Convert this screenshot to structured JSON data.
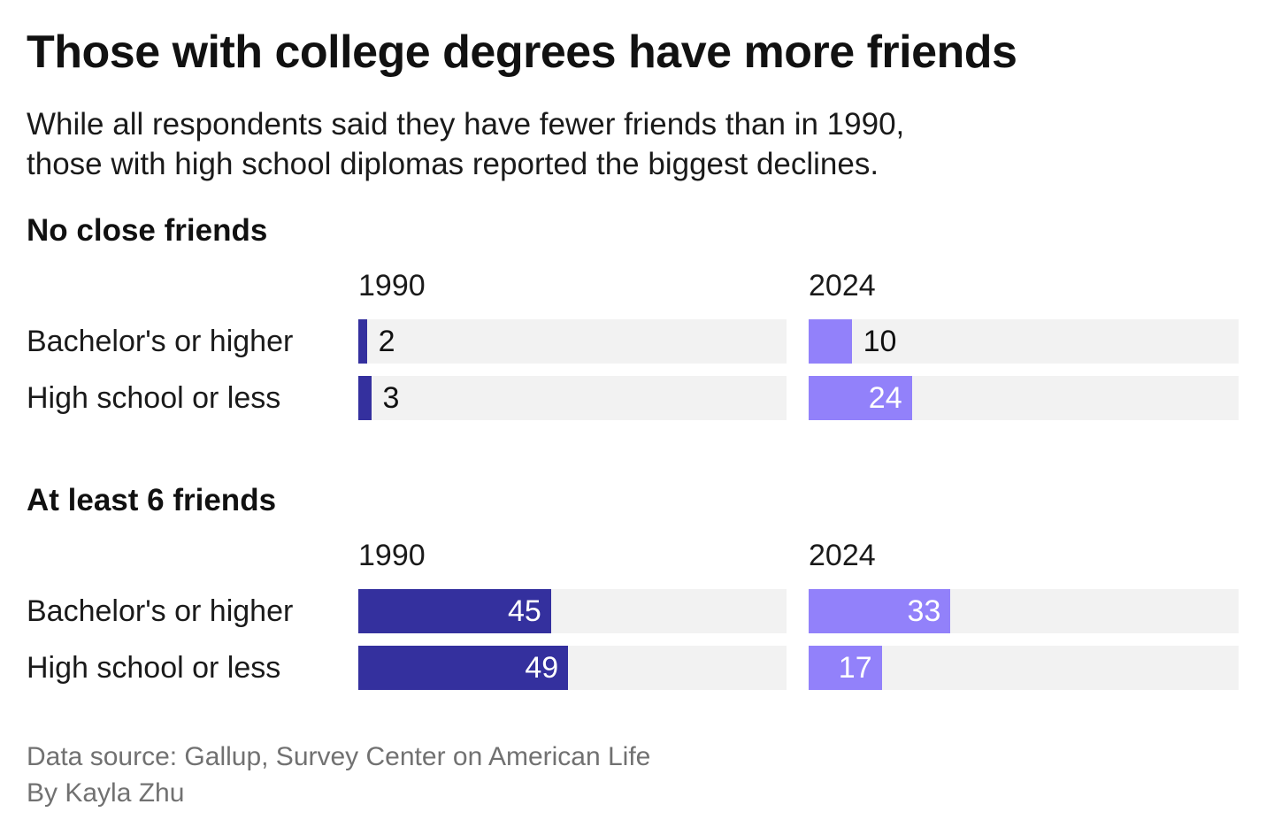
{
  "title": "Those with college degrees have more friends",
  "subtitle_lines": [
    "While all respondents said they have fewer friends than in 1990,",
    "those with high school diplomas reported the biggest declines."
  ],
  "footer": {
    "source": "Data source: Gallup, Survey Center on American Life",
    "byline": "By Kayla Zhu"
  },
  "colors": {
    "year_1990": "#34309e",
    "year_2024": "#9281fa",
    "track": "#f2f2f2",
    "label_inside": "#ffffff",
    "label_outside": "#111111",
    "footer_text": "#717171"
  },
  "chart_data": {
    "type": "bar",
    "orientation": "horizontal",
    "unit": "percent of respondents",
    "xlim": [
      0,
      100
    ],
    "grid": false,
    "legend_position": "column-headers",
    "columns": [
      "1990",
      "2024"
    ],
    "categories": [
      "Bachelor's or higher",
      "High school or less"
    ],
    "value_label_inside_threshold": 15,
    "sections": [
      {
        "heading": "No close friends",
        "series": [
          {
            "name": "1990",
            "values": [
              2,
              3
            ]
          },
          {
            "name": "2024",
            "values": [
              10,
              24
            ]
          }
        ]
      },
      {
        "heading": "At least 6 friends",
        "series": [
          {
            "name": "1990",
            "values": [
              45,
              49
            ]
          },
          {
            "name": "2024",
            "values": [
              33,
              17
            ]
          }
        ]
      }
    ]
  }
}
